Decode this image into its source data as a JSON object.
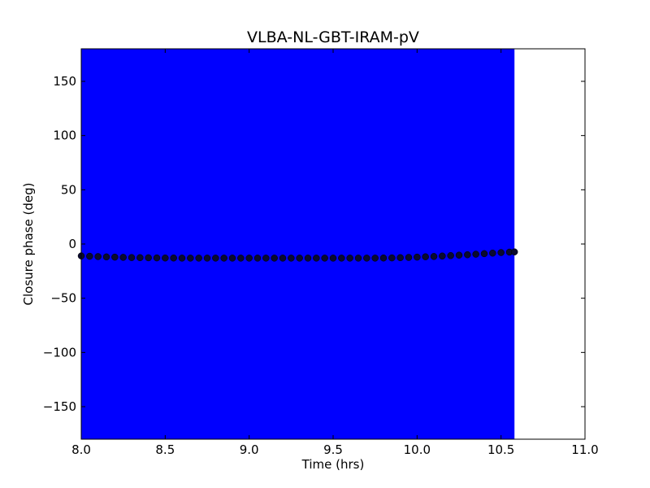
{
  "chart_data": {
    "type": "scatter",
    "title": "VLBA-NL-GBT-IRAM-pV",
    "xlabel": "Time (hrs)",
    "ylabel": "Closure phase (deg)",
    "xlim": [
      8.0,
      11.0
    ],
    "ylim": [
      -180,
      180
    ],
    "xticks": [
      8.0,
      8.5,
      9.0,
      9.5,
      10.0,
      10.5,
      11.0
    ],
    "xtick_labels": [
      "8.0",
      "8.5",
      "9.0",
      "9.5",
      "10.0",
      "10.5",
      "11.0"
    ],
    "yticks": [
      -150,
      -100,
      -50,
      0,
      50,
      100,
      150
    ],
    "ytick_labels": [
      "−150",
      "−100",
      "−50",
      "0",
      "50",
      "100",
      "150"
    ],
    "grid": false,
    "band": {
      "x_start": 8.0,
      "x_end": 10.58,
      "color": "#0000ff"
    },
    "marker_color": "#0a0a2e",
    "series": [
      {
        "x": [
          8.0,
          8.05,
          8.1,
          8.15,
          8.2,
          8.25,
          8.3,
          8.35,
          8.4,
          8.45,
          8.5,
          8.55,
          8.6,
          8.65,
          8.7,
          8.75,
          8.8,
          8.85,
          8.9,
          8.95,
          9.0,
          9.05,
          9.1,
          9.15,
          9.2,
          9.25,
          9.3,
          9.35,
          9.4,
          9.45,
          9.5,
          9.55,
          9.6,
          9.65,
          9.7,
          9.75,
          9.8,
          9.85,
          9.9,
          9.95,
          10.0,
          10.05,
          10.1,
          10.15,
          10.2,
          10.25,
          10.3,
          10.35,
          10.4,
          10.45,
          10.5,
          10.55,
          10.58
        ],
        "y": [
          -11,
          -11.3,
          -11.6,
          -11.9,
          -12.1,
          -12.3,
          -12.5,
          -12.6,
          -12.7,
          -12.8,
          -12.9,
          -12.9,
          -13.0,
          -13.0,
          -13.0,
          -13.0,
          -13.0,
          -13.0,
          -13.0,
          -13.0,
          -13.0,
          -13.0,
          -13.0,
          -13.0,
          -13.0,
          -13.0,
          -13.0,
          -13.0,
          -13.0,
          -13.0,
          -13.0,
          -13.0,
          -13.0,
          -13.0,
          -13.0,
          -13.0,
          -12.9,
          -12.8,
          -12.6,
          -12.4,
          -12.1,
          -11.8,
          -11.5,
          -11.1,
          -10.7,
          -10.3,
          -9.9,
          -9.4,
          -8.9,
          -8.4,
          -7.9,
          -7.5,
          -7.3
        ]
      }
    ]
  }
}
